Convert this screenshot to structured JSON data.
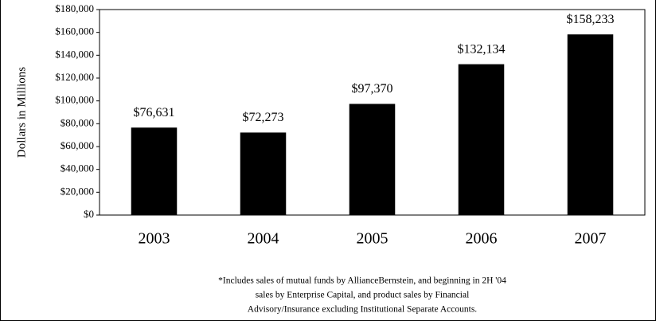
{
  "chart_data": {
    "type": "bar",
    "y_label": "Dollars in Millions",
    "categories": [
      "2003",
      "2004",
      "2005",
      "2006",
      "2007"
    ],
    "values": [
      76631,
      72273,
      97370,
      132134,
      158233
    ],
    "value_labels": [
      "$76,631",
      "$72,273",
      "$97,370",
      "$132,134",
      "$158,233"
    ],
    "color": "#000000",
    "ylim": [
      0,
      180000
    ],
    "yticks": [
      {
        "value": 0,
        "label": "$0"
      },
      {
        "value": 20000,
        "label": "$20,000"
      },
      {
        "value": 40000,
        "label": "$40,000"
      },
      {
        "value": 60000,
        "label": "$60,000"
      },
      {
        "value": 80000,
        "label": "$80,000"
      },
      {
        "value": 100000,
        "label": "$100,000"
      },
      {
        "value": 120000,
        "label": "$120,000"
      },
      {
        "value": 140000,
        "label": "$140,000"
      },
      {
        "value": 160000,
        "label": "$160,000"
      },
      {
        "value": 180000,
        "label": "$180,000"
      }
    ],
    "grid": false,
    "note": [
      "*Includes sales of mutual funds by AllianceBernstein, and beginning in 2H '04",
      "sales by Enterprise Capital, and product sales by Financial",
      "Advisory/Insurance excluding Institutional Separate Accounts."
    ]
  }
}
